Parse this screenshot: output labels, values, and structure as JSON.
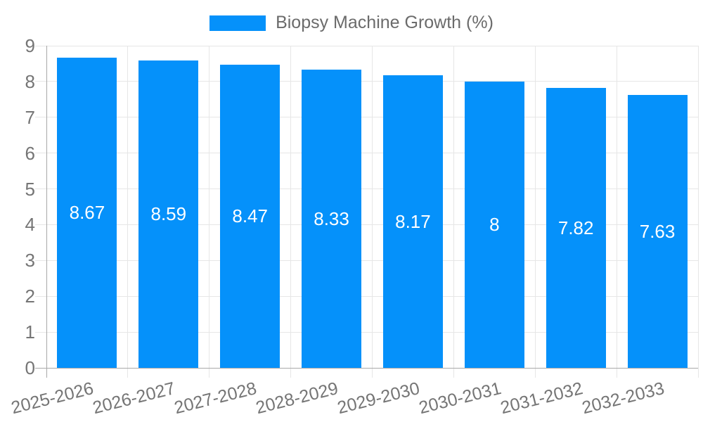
{
  "chart_data": {
    "type": "bar",
    "title": "Biopsy Machine Growth (%)",
    "legend_position": "top",
    "categories": [
      "2025-2026",
      "2026-2027",
      "2027-2028",
      "2028-2029",
      "2029-2030",
      "2030-2031",
      "2031-2032",
      "2032-2033"
    ],
    "values": [
      8.67,
      8.59,
      8.47,
      8.33,
      8.17,
      8,
      7.82,
      7.63
    ],
    "value_labels": [
      "8.67",
      "8.59",
      "8.47",
      "8.33",
      "8.17",
      "8",
      "7.82",
      "7.63"
    ],
    "xlabel": "",
    "ylabel": "",
    "ylim": [
      0,
      9
    ],
    "ytick_step": 1,
    "ytick_labels": [
      "0",
      "1",
      "2",
      "3",
      "4",
      "5",
      "6",
      "7",
      "8",
      "9"
    ],
    "grid": true,
    "colors": {
      "bar": "#0591fa",
      "gridline": "#e6e6e6",
      "axis": "#a9a9a9",
      "tick_label": "#757575",
      "legend_text": "#6b6b6b",
      "value_label": "#ffffff",
      "background": "#ffffff"
    }
  }
}
